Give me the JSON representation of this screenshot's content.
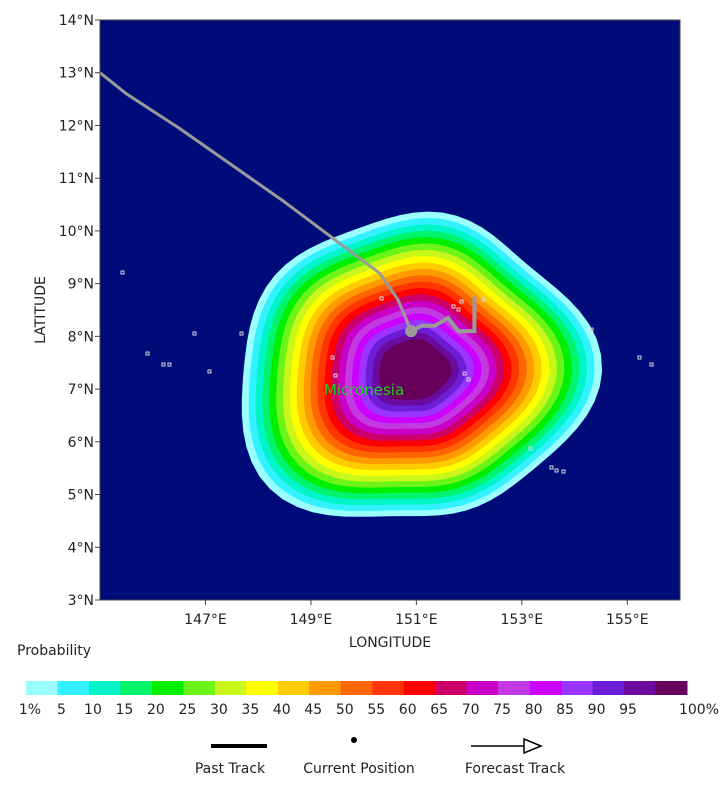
{
  "map": {
    "region_label": "Micronesia",
    "x_axis_title": "LONGITUDE",
    "y_axis_title": "LATITUDE",
    "lon_range": [
      145,
      156
    ],
    "lat_range": [
      3,
      14
    ],
    "lon_ticks": [
      "147°E",
      "149°E",
      "151°E",
      "153°E",
      "155°E"
    ],
    "lat_ticks": [
      "3°N",
      "4°N",
      "5°N",
      "6°N",
      "7°N",
      "8°N",
      "9°N",
      "10°N",
      "11°N",
      "12°N",
      "13°N",
      "14°N"
    ],
    "lon_tick_values": [
      147,
      149,
      151,
      153,
      155
    ],
    "lat_tick_values": [
      3,
      4,
      5,
      6,
      7,
      8,
      9,
      10,
      11,
      12,
      13,
      14
    ],
    "ocean_color": "#000b7a",
    "current_position": {
      "lon": 150.9,
      "lat": 8.1
    },
    "past_track": [
      {
        "lon": 145.0,
        "lat": 13.0
      },
      {
        "lon": 145.5,
        "lat": 12.6
      },
      {
        "lon": 146.5,
        "lat": 11.95
      },
      {
        "lon": 147.5,
        "lat": 11.25
      },
      {
        "lon": 148.5,
        "lat": 10.55
      },
      {
        "lon": 149.5,
        "lat": 9.8
      },
      {
        "lon": 150.3,
        "lat": 9.2
      },
      {
        "lon": 150.65,
        "lat": 8.7
      },
      {
        "lon": 150.9,
        "lat": 8.1
      }
    ],
    "forecast_track": [
      {
        "lon": 150.9,
        "lat": 8.1
      },
      {
        "lon": 151.1,
        "lat": 8.2
      },
      {
        "lon": 151.35,
        "lat": 8.2
      },
      {
        "lon": 151.6,
        "lat": 8.35
      },
      {
        "lon": 151.8,
        "lat": 8.1
      },
      {
        "lon": 152.1,
        "lat": 8.1
      },
      {
        "lon": 152.1,
        "lat": 8.75
      }
    ]
  },
  "legend": {
    "title": "Probability",
    "labels": [
      "1%",
      "5",
      "10",
      "15",
      "20",
      "25",
      "30",
      "35",
      "40",
      "45",
      "50",
      "55",
      "60",
      "65",
      "70",
      "75",
      "80",
      "85",
      "90",
      "95",
      "100%"
    ],
    "colors": [
      "#9bffff",
      "#33f2ff",
      "#00f5c8",
      "#00f46c",
      "#00ef00",
      "#6cf419",
      "#c8f719",
      "#ffff00",
      "#ffcc00",
      "#ff9b00",
      "#ff6600",
      "#ff3500",
      "#ff0000",
      "#cc0066",
      "#c800c8",
      "#c33ae2",
      "#cc00ff",
      "#9b34ff",
      "#6b1ed6",
      "#6a0a9f",
      "#66005a"
    ],
    "keys": {
      "past_track": "Past Track",
      "current_position": "Current Position",
      "forecast_track": "Forecast Track"
    }
  }
}
